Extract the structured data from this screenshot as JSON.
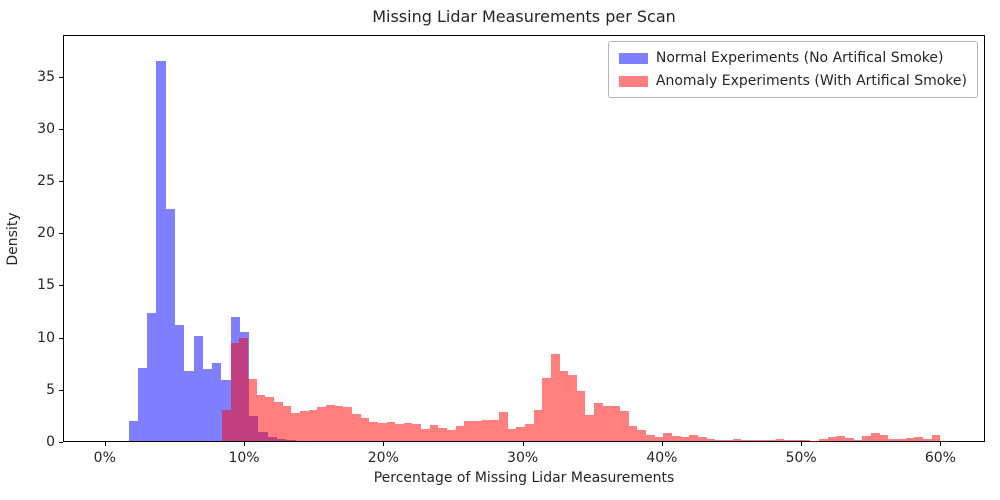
{
  "chart_data": {
    "type": "bar",
    "subtype": "overlaid-histogram",
    "title": "Missing Lidar Measurements per Scan",
    "xlabel": "Percentage of Missing Lidar Measurements",
    "ylabel": "Density",
    "xlim": [
      -3.0,
      63.2
    ],
    "ylim": [
      0,
      39
    ],
    "grid": "off",
    "x_tick_values": [
      0,
      10,
      20,
      30,
      40,
      50,
      60
    ],
    "x_tick_labels": [
      "0%",
      "10%",
      "20%",
      "30%",
      "40%",
      "50%",
      "60%"
    ],
    "y_tick_values": [
      0,
      5,
      10,
      15,
      20,
      25,
      30,
      35
    ],
    "y_tick_labels": [
      "0",
      "5",
      "10",
      "15",
      "20",
      "25",
      "30",
      "35"
    ],
    "legend_position": "upper right",
    "series": [
      {
        "name": "Normal Experiments (No Artifical Smoke)",
        "base_color": "#0000ff",
        "alpha": 0.5,
        "fill": "rgba(0,0,255,0.5)",
        "swatch": "#8080ff",
        "bin_start_pct": 1.65,
        "bin_width_pct": 0.6675,
        "values": [
          1.9,
          7.0,
          12.3,
          36.6,
          22.3,
          11.2,
          6.7,
          10.1,
          6.9,
          7.5,
          5.9,
          11.9,
          10.5,
          2.4,
          0.9,
          0.4,
          0.2,
          0.1
        ]
      },
      {
        "name": "Anomaly Experiments (With Artifical Smoke)",
        "base_color": "#ff0000",
        "alpha": 0.5,
        "fill": "rgba(255,0,0,0.5)",
        "swatch": "#ff8080",
        "bin_start_pct": 8.38,
        "bin_width_pct": 0.6225,
        "values": [
          3.0,
          9.4,
          9.9,
          6.0,
          4.4,
          4.2,
          3.8,
          3.4,
          2.7,
          2.9,
          3.0,
          3.25,
          3.5,
          3.4,
          3.3,
          2.6,
          2.2,
          1.8,
          1.7,
          1.8,
          1.6,
          1.75,
          1.65,
          1.2,
          1.5,
          1.26,
          1.03,
          1.4,
          1.9,
          1.9,
          2.06,
          2.06,
          2.8,
          1.2,
          1.35,
          1.6,
          3.0,
          6.1,
          8.4,
          6.7,
          6.4,
          4.8,
          2.5,
          3.7,
          3.4,
          3.4,
          2.9,
          1.45,
          1.1,
          0.55,
          0.4,
          0.75,
          0.5,
          0.35,
          0.6,
          0.35,
          0.15,
          0.1,
          0.05,
          0.15,
          0.1,
          0.05,
          0.05,
          0.05,
          0.22,
          0.1,
          0.05,
          0.05,
          0.03,
          0.22,
          0.42,
          0.48,
          0.29,
          0.1,
          0.45,
          0.77,
          0.61,
          0.2,
          0.23,
          0.29,
          0.39,
          0.16,
          0.55,
          0.04
        ]
      }
    ]
  }
}
